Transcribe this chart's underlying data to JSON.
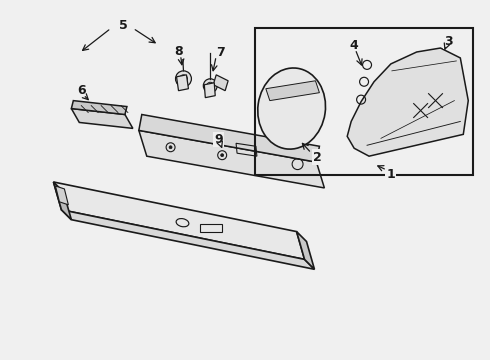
{
  "bg_color": "#f0f0f0",
  "line_color": "#1a1a1a",
  "fig_width": 4.9,
  "fig_height": 3.6,
  "dpi": 100,
  "bar_face": "#e8e8e8",
  "bar_top": "#d8d8d8",
  "bar_right": "#c8c8c8",
  "bar_left": "#b8b8b8",
  "panel_face": "#e0e0e0",
  "panel_front": "#d8d8d8",
  "bracket_face": "#e0e0e0",
  "lens_face": "#e8e8e8",
  "refl_face": "#d8d8d8",
  "socket_face": "#e0e0e0"
}
